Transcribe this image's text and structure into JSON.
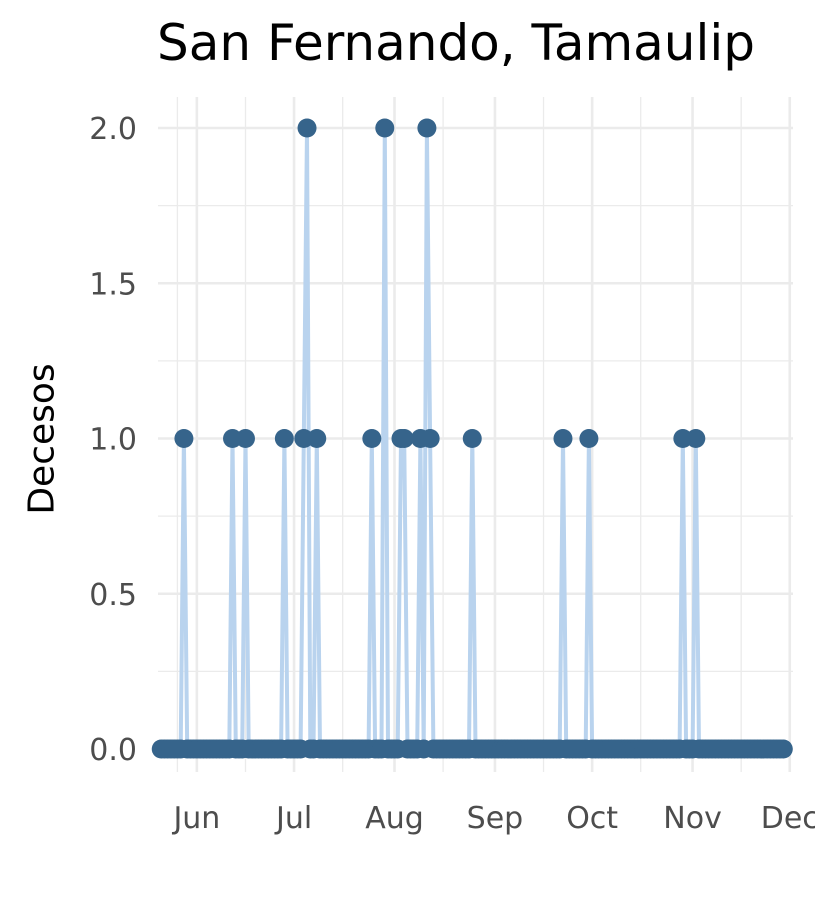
{
  "chart_data": {
    "type": "line",
    "title": "San Fernando, Tamaulip",
    "xlabel": "",
    "ylabel": "Decesos",
    "ylim": [
      0,
      2
    ],
    "xlim": [
      "2020-05-20",
      "2020-12-02"
    ],
    "y_ticks": [
      "0.0",
      "0.5",
      "1.0",
      "1.5",
      "2.0"
    ],
    "x_ticks": [
      {
        "label": "Jun",
        "date": "2020-06-01"
      },
      {
        "label": "Jul",
        "date": "2020-07-01"
      },
      {
        "label": "Aug",
        "date": "2020-08-01"
      },
      {
        "label": "Sep",
        "date": "2020-09-01"
      },
      {
        "label": "Oct",
        "date": "2020-10-01"
      },
      {
        "label": "Nov",
        "date": "2020-11-01"
      },
      {
        "label": "Dec",
        "date": "2020-12-01"
      }
    ],
    "grid": true,
    "line_color": "#b9d3ee",
    "point_color": "#36648b",
    "series": [
      {
        "x_start": "2020-05-21",
        "x_end": "2020-11-29",
        "nonzero": [
          {
            "x": "2020-05-28",
            "y": 1
          },
          {
            "x": "2020-06-12",
            "y": 1
          },
          {
            "x": "2020-06-16",
            "y": 1
          },
          {
            "x": "2020-06-28",
            "y": 1
          },
          {
            "x": "2020-07-04",
            "y": 1
          },
          {
            "x": "2020-07-05",
            "y": 2
          },
          {
            "x": "2020-07-08",
            "y": 1
          },
          {
            "x": "2020-07-25",
            "y": 1
          },
          {
            "x": "2020-07-29",
            "y": 2
          },
          {
            "x": "2020-08-03",
            "y": 1
          },
          {
            "x": "2020-08-04",
            "y": 1
          },
          {
            "x": "2020-08-09",
            "y": 1
          },
          {
            "x": "2020-08-11",
            "y": 2
          },
          {
            "x": "2020-08-12",
            "y": 1
          },
          {
            "x": "2020-08-25",
            "y": 1
          },
          {
            "x": "2020-09-22",
            "y": 1
          },
          {
            "x": "2020-09-30",
            "y": 1
          },
          {
            "x": "2020-10-29",
            "y": 1
          },
          {
            "x": "2020-11-02",
            "y": 1
          }
        ]
      }
    ]
  }
}
